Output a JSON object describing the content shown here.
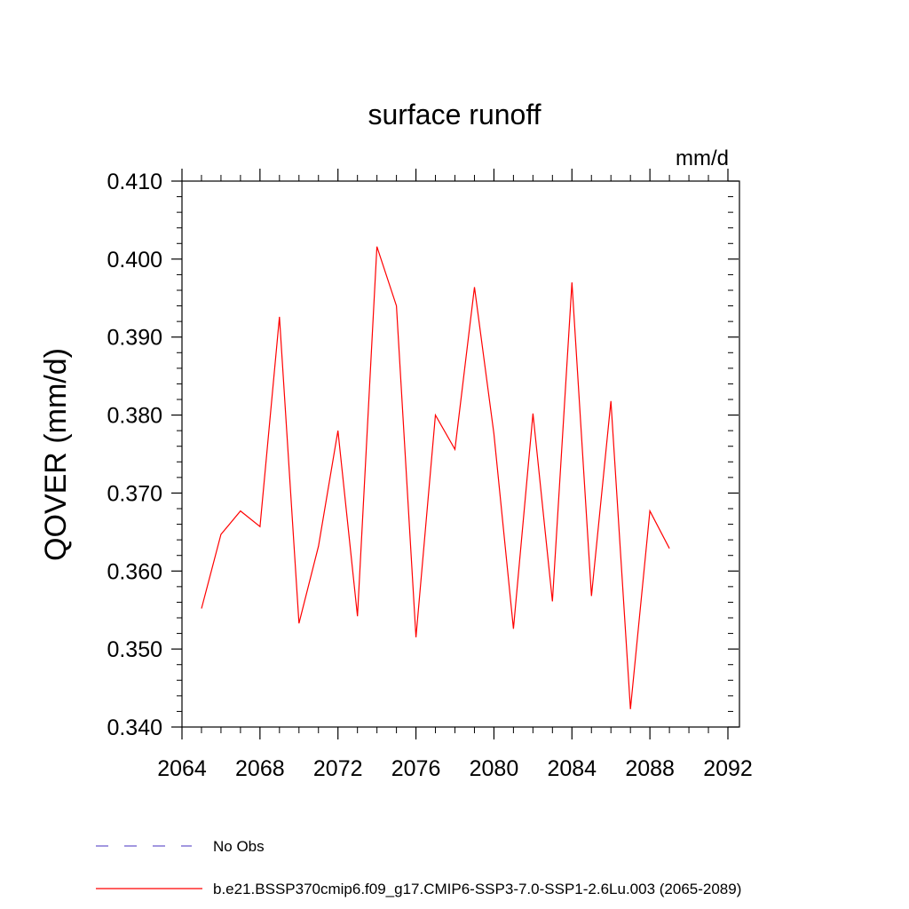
{
  "chart_data": {
    "type": "line",
    "title": "surface runoff",
    "units_label": "mm/d",
    "ylabel": "QOVER  (mm/d)",
    "xlabel": "",
    "xlim": [
      2064,
      2092
    ],
    "ylim": [
      0.34,
      0.41
    ],
    "x_ticks": [
      "2064",
      "2068",
      "2072",
      "2076",
      "2080",
      "2084",
      "2088",
      "2092"
    ],
    "y_ticks": [
      "0.340",
      "0.350",
      "0.360",
      "0.370",
      "0.380",
      "0.390",
      "0.400",
      "0.410"
    ],
    "grid": false,
    "legend_position": "bottom",
    "series": [
      {
        "name": "b.e21.BSSP370cmip6.f09_g17.CMIP6-SSP3-7.0-SSP1-2.6Lu.003 (2065-2089)",
        "color": "#ff0000",
        "style": "solid",
        "x": [
          2065,
          2066,
          2067,
          2068,
          2069,
          2070,
          2071,
          2072,
          2073,
          2074,
          2075,
          2076,
          2077,
          2078,
          2079,
          2080,
          2081,
          2082,
          2083,
          2084,
          2085,
          2086,
          2087,
          2088,
          2089
        ],
        "values": [
          0.3552,
          0.3647,
          0.3677,
          0.3657,
          0.3926,
          0.3533,
          0.3632,
          0.378,
          0.3542,
          0.4016,
          0.394,
          0.3515,
          0.38,
          0.3756,
          0.3964,
          0.3776,
          0.3526,
          0.3802,
          0.3561,
          0.397,
          0.3568,
          0.3818,
          0.3423,
          0.3677,
          0.3629
        ]
      }
    ],
    "legend": [
      {
        "label": "No Obs",
        "color": "#6a5acd",
        "style": "dashed"
      },
      {
        "label": "b.e21.BSSP370cmip6.f09_g17.CMIP6-SSP3-7.0-SSP1-2.6Lu.003 (2065-2089)",
        "color": "#ff0000",
        "style": "solid"
      }
    ]
  }
}
